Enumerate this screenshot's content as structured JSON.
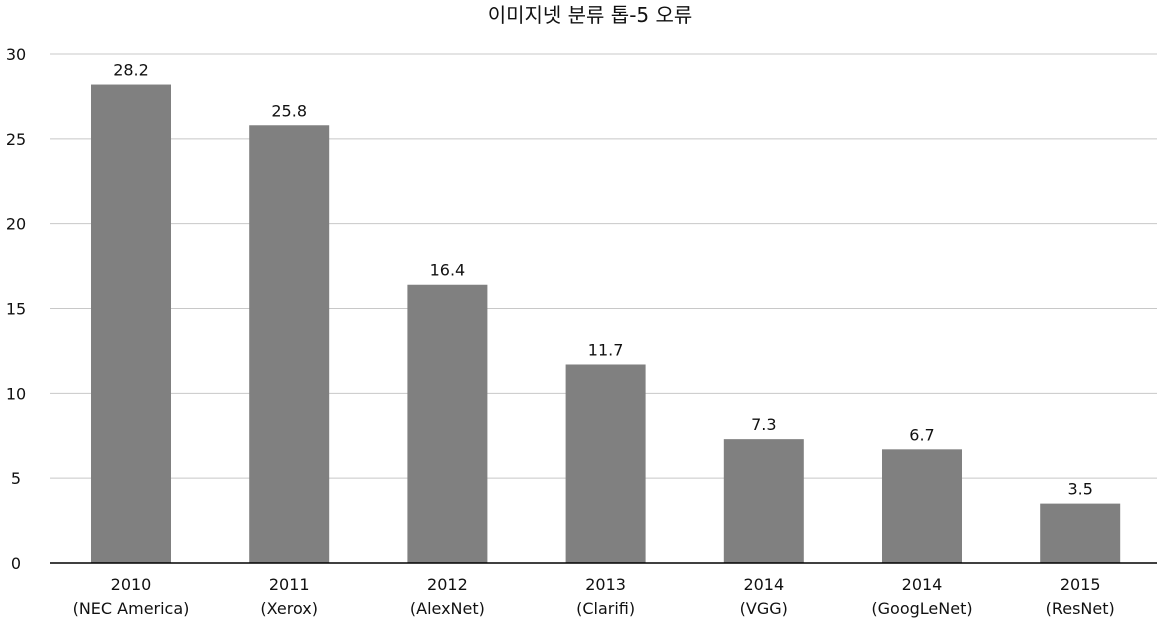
{
  "chart_data": {
    "type": "bar",
    "title": "이미지넷 분류 톱-5 오류",
    "xlabel": "",
    "ylabel": "",
    "ylim": [
      0,
      30
    ],
    "yticks": [
      0,
      5,
      10,
      15,
      20,
      25,
      30
    ],
    "grid": true,
    "legend": "none",
    "categories": [
      {
        "year": "2010",
        "model": "(NEC America)"
      },
      {
        "year": "2011",
        "model": "(Xerox)"
      },
      {
        "year": "2012",
        "model": "(AlexNet)"
      },
      {
        "year": "2013",
        "model": "(Clarifi)"
      },
      {
        "year": "2014",
        "model": "(VGG)"
      },
      {
        "year": "2014",
        "model": "(GoogLeNet)"
      },
      {
        "year": "2015",
        "model": "(ResNet)"
      }
    ],
    "values": [
      28.2,
      25.8,
      16.4,
      11.7,
      7.3,
      6.7,
      3.5
    ],
    "value_labels": [
      "28.2",
      "25.8",
      "16.4",
      "11.7",
      "7.3",
      "6.7",
      "3.5"
    ],
    "colors": {
      "bar": "#808080",
      "grid": "#c8c8c8",
      "axis": "#000000",
      "text": "#111111"
    }
  }
}
